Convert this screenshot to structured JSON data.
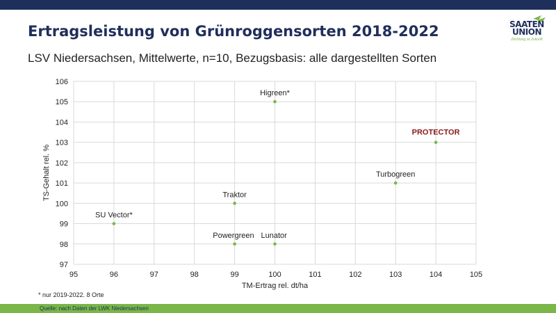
{
  "title": "Ertragsleistung von Grünroggensorten 2018-2022",
  "subtitle": "LSV Niedersachsen, Mittelwerte, n=10, Bezugsbasis: alle dargestellten Sorten",
  "logo": {
    "line1": "SAATEN",
    "line2": "UNION",
    "tagline": "Züchtung ist Zukunft"
  },
  "footnote": "* nur 2019-2022. 8 Orte",
  "source": "Quelle: nach Daten der LWK Niedersachsen",
  "colors": {
    "navy": "#1f2f5c",
    "green": "#7ab648",
    "highlight": "#8b1a1a",
    "grid": "#d9d9d9"
  },
  "chart_data": {
    "type": "scatter",
    "xlabel": "TM-Ertrag rel. dt/ha",
    "ylabel": "TS-Gehalt rel. %",
    "xlim": [
      95,
      105
    ],
    "ylim": [
      97,
      106
    ],
    "xticks": [
      95,
      96,
      97,
      98,
      99,
      100,
      101,
      102,
      103,
      104,
      105
    ],
    "yticks": [
      97,
      98,
      99,
      100,
      101,
      102,
      103,
      104,
      105,
      106
    ],
    "grid": true,
    "points": [
      {
        "label": "Higreen*",
        "x": 100,
        "y": 105
      },
      {
        "label": "PROTECTOR",
        "x": 104,
        "y": 103,
        "highlight": true
      },
      {
        "label": "Turbogreen",
        "x": 103,
        "y": 101
      },
      {
        "label": "Traktor",
        "x": 99,
        "y": 100
      },
      {
        "label": "SU Vector*",
        "x": 96,
        "y": 99
      },
      {
        "label": "Powergreen",
        "x": 99,
        "y": 98
      },
      {
        "label": "Lunator",
        "x": 100,
        "y": 98
      }
    ]
  }
}
